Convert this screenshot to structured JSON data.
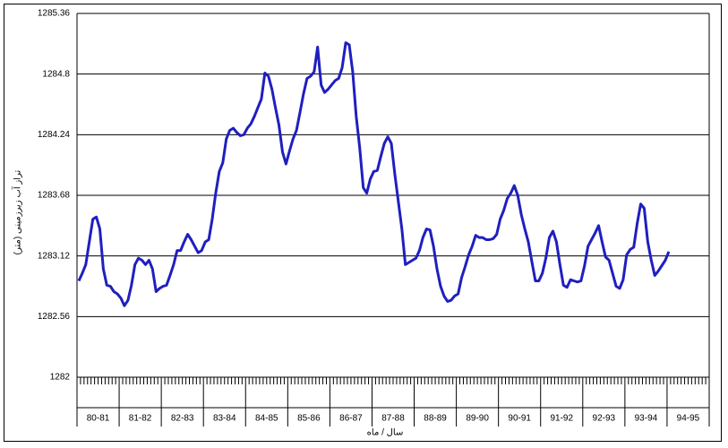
{
  "chart_data": {
    "type": "line",
    "y_label": "تراز آب زیرزمینی (متر)",
    "x_label": "سال / ماه",
    "categories": [
      "80-81",
      "81-82",
      "82-83",
      "83-84",
      "84-85",
      "85-86",
      "86-87",
      "87-88",
      "88-89",
      "89-90",
      "90-91",
      "91-92",
      "92-93",
      "93-94",
      "94-95"
    ],
    "series": [
      {
        "color": "#1f1fbf",
        "values": [
          [
            1282.89,
            1282.96,
            1283.04,
            1283.25,
            1283.46,
            1283.48,
            1283.37,
            1283.0,
            1282.85,
            1282.84,
            1282.79,
            1282.77
          ],
          [
            1282.73,
            1282.66,
            1282.71,
            1282.85,
            1283.04,
            1283.1,
            1283.08,
            1283.04,
            1283.08,
            1283.0,
            1282.79,
            1282.82
          ],
          [
            1282.84,
            1282.85,
            1282.94,
            1283.04,
            1283.17,
            1283.17,
            1283.25,
            1283.32,
            1283.27,
            1283.21,
            1283.15,
            1283.17
          ],
          [
            1283.25,
            1283.27,
            1283.46,
            1283.7,
            1283.9,
            1283.98,
            1284.2,
            1284.28,
            1284.3,
            1284.26,
            1284.23,
            1284.24
          ],
          [
            1284.3,
            1284.34,
            1284.41,
            1284.49,
            1284.57,
            1284.81,
            1284.78,
            1284.66,
            1284.49,
            1284.33,
            1284.08,
            1283.97
          ],
          [
            1284.09,
            1284.2,
            1284.28,
            1284.45,
            1284.62,
            1284.76,
            1284.78,
            1284.82,
            1285.05,
            1284.7,
            1284.63,
            1284.66
          ],
          [
            1284.7,
            1284.74,
            1284.76,
            1284.86,
            1285.09,
            1285.07,
            1284.82,
            1284.41,
            1284.12,
            1283.75,
            1283.7,
            1283.83
          ],
          [
            1283.9,
            1283.91,
            1284.04,
            1284.16,
            1284.22,
            1284.16,
            1283.87,
            1283.62,
            1283.37,
            1283.04,
            1283.06,
            1283.08
          ],
          [
            1283.1,
            1283.17,
            1283.29,
            1283.37,
            1283.36,
            1283.21,
            1283.0,
            1282.84,
            1282.75,
            1282.7,
            1282.71,
            1282.75
          ],
          [
            1282.77,
            1282.92,
            1283.02,
            1283.13,
            1283.21,
            1283.31,
            1283.29,
            1283.29,
            1283.27,
            1283.27,
            1283.28,
            1283.32
          ],
          [
            1283.46,
            1283.54,
            1283.65,
            1283.7,
            1283.77,
            1283.68,
            1283.5,
            1283.37,
            1283.25,
            1283.07,
            1282.89,
            1282.89
          ],
          [
            1282.96,
            1283.1,
            1283.29,
            1283.35,
            1283.25,
            1283.04,
            1282.85,
            1282.83,
            1282.9,
            1282.89,
            1282.88,
            1282.89
          ],
          [
            1283.03,
            1283.21,
            1283.27,
            1283.33,
            1283.4,
            1283.25,
            1283.11,
            1283.08,
            1282.96,
            1282.84,
            1282.82,
            1282.9
          ],
          [
            1283.13,
            1283.18,
            1283.2,
            1283.42,
            1283.6,
            1283.56,
            1283.25,
            1283.08,
            1282.94,
            1282.98,
            1283.03,
            1283.08
          ],
          [
            1283.16
          ]
        ]
      }
    ],
    "ylim": [
      1282,
      1285.36
    ],
    "yticks": [
      1282,
      1282.56,
      1283.12,
      1283.68,
      1284.24,
      1284.8,
      1285.36
    ],
    "grid": true
  }
}
